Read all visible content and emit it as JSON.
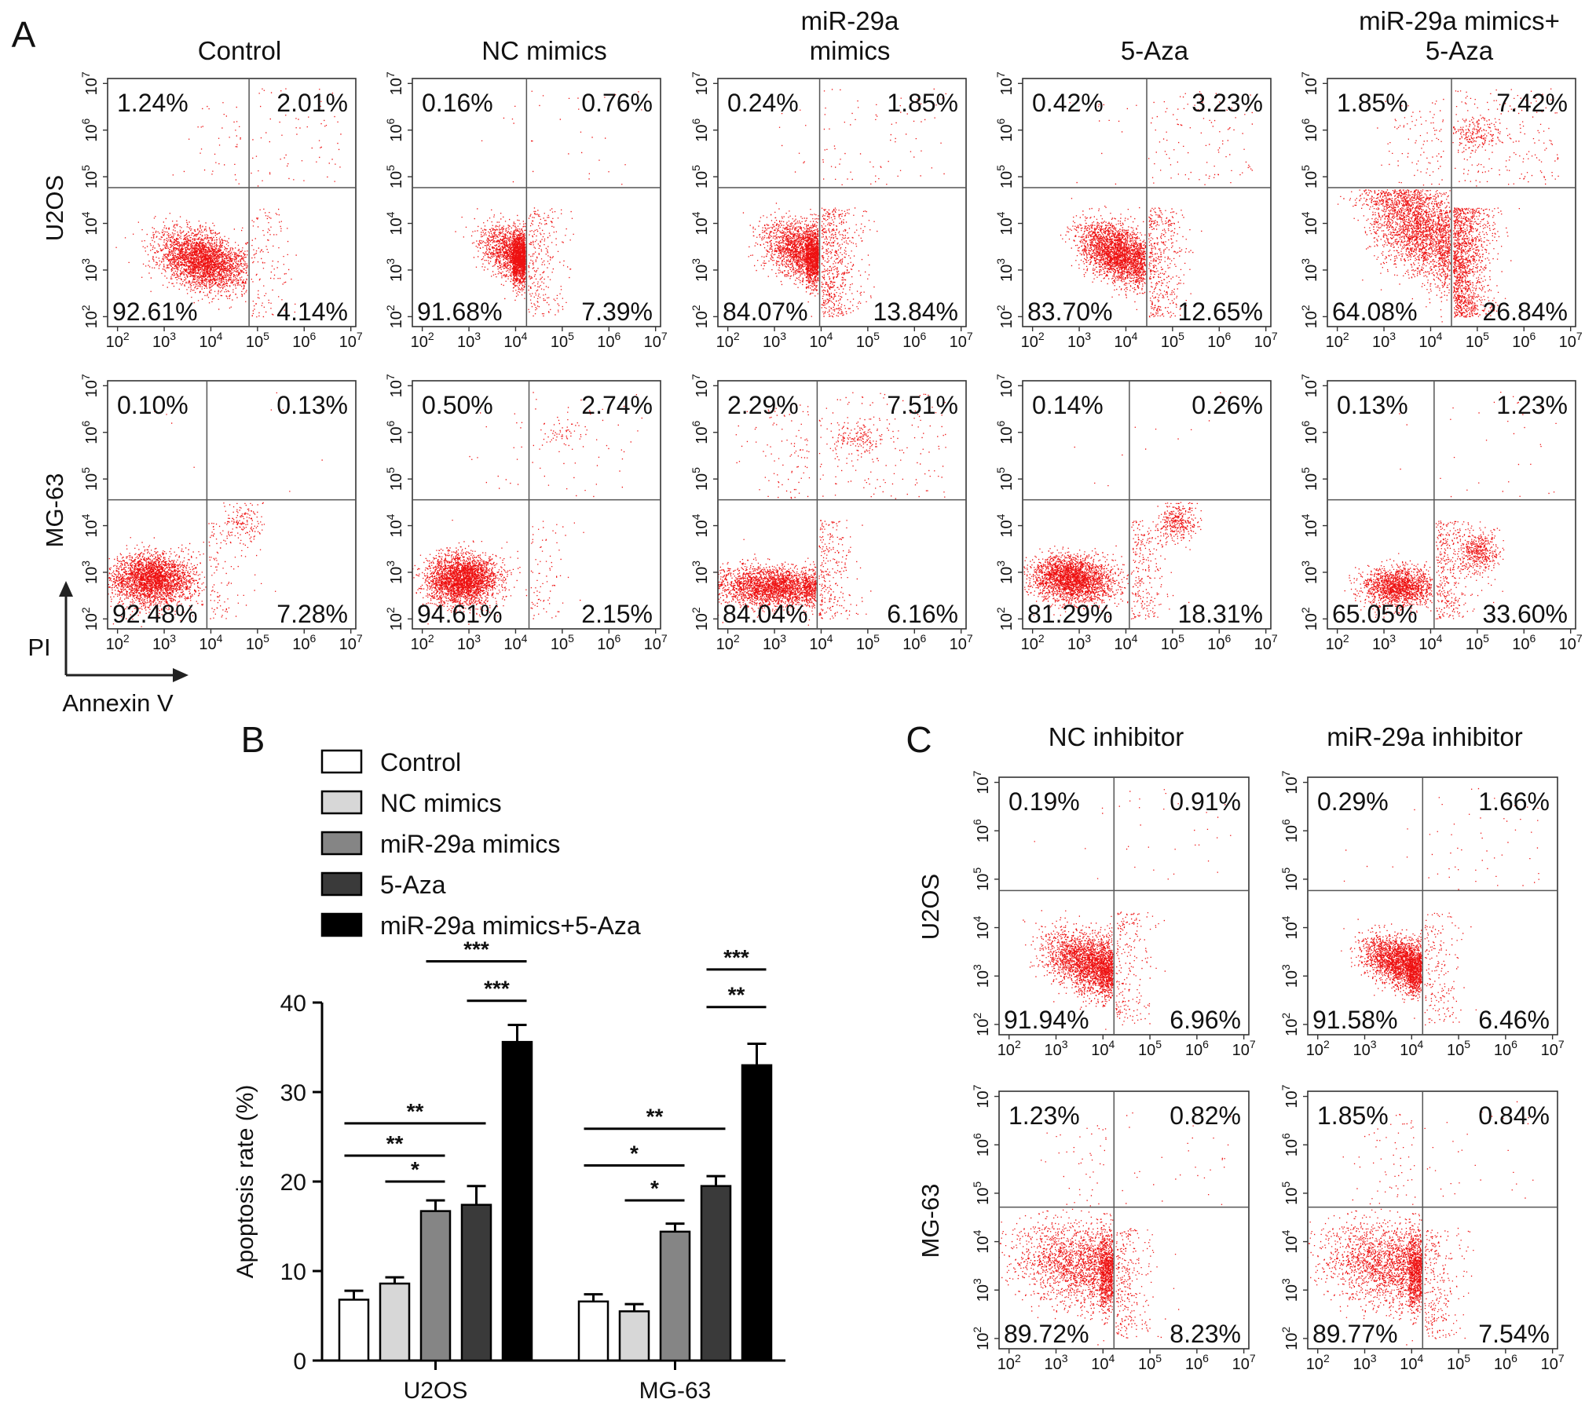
{
  "colors": {
    "dot": "#ee1111",
    "frame": "#333333",
    "bar_fills": [
      "#ffffff",
      "#d7d7d7",
      "#858585",
      "#3a3a3a",
      "#000000"
    ]
  },
  "panel_a": {
    "letter": "A",
    "columns": [
      "Control",
      "NC mimics",
      "miR-29a\nmimics",
      "5-Aza",
      "miR-29a mimics+\n5-Aza"
    ],
    "rows": [
      "U2OS",
      "MG-63"
    ],
    "y_axis_label": "PI",
    "x_axis_label": "Annexin V"
  },
  "panel_c": {
    "letter": "C",
    "columns": [
      "NC inhibitor",
      "miR-29a inhibitor"
    ],
    "rows": [
      "U2OS",
      "MG-63"
    ]
  },
  "flow_axis": {
    "tick_bases": [
      "10",
      "10",
      "10",
      "10",
      "10",
      "10"
    ],
    "tick_exponents": [
      "2",
      "3",
      "4",
      "5",
      "6",
      "7"
    ]
  },
  "chart_data": [
    {
      "type": "scatter",
      "panel": "A",
      "description_type": "flow cytometry quadrant plots (PI vs Annexin V)",
      "x_axis": {
        "label": "Annexin V",
        "scale": "log",
        "range": [
          100,
          10000000
        ]
      },
      "y_axis": {
        "label": "PI",
        "scale": "log",
        "range": [
          100,
          10000000
        ]
      },
      "quadrant_order": [
        "upper-left",
        "upper-right",
        "lower-left",
        "lower-right"
      ],
      "plots": [
        {
          "row": "U2OS",
          "column": "Control",
          "quadrants": [
            "1.24%",
            "2.01%",
            "92.61%",
            "4.14%"
          ]
        },
        {
          "row": "U2OS",
          "column": "NC mimics",
          "quadrants": [
            "0.16%",
            "0.76%",
            "91.68%",
            "7.39%"
          ]
        },
        {
          "row": "U2OS",
          "column": "miR-29a mimics",
          "quadrants": [
            "0.24%",
            "1.85%",
            "84.07%",
            "13.84%"
          ]
        },
        {
          "row": "U2OS",
          "column": "5-Aza",
          "quadrants": [
            "0.42%",
            "3.23%",
            "83.70%",
            "12.65%"
          ]
        },
        {
          "row": "U2OS",
          "column": "miR-29a mimics+5-Aza",
          "quadrants": [
            "1.85%",
            "7.42%",
            "64.08%",
            "26.84%"
          ]
        },
        {
          "row": "MG-63",
          "column": "Control",
          "quadrants": [
            "0.10%",
            "0.13%",
            "92.48%",
            "7.28%"
          ]
        },
        {
          "row": "MG-63",
          "column": "NC mimics",
          "quadrants": [
            "0.50%",
            "2.74%",
            "94.61%",
            "2.15%"
          ]
        },
        {
          "row": "MG-63",
          "column": "miR-29a mimics",
          "quadrants": [
            "2.29%",
            "7.51%",
            "84.04%",
            "6.16%"
          ]
        },
        {
          "row": "MG-63",
          "column": "5-Aza",
          "quadrants": [
            "0.14%",
            "0.26%",
            "81.29%",
            "18.31%"
          ]
        },
        {
          "row": "MG-63",
          "column": "miR-29a mimics+5-Aza",
          "quadrants": [
            "0.13%",
            "1.23%",
            "65.05%",
            "33.60%"
          ]
        }
      ]
    },
    {
      "type": "bar",
      "panel": "B",
      "letter": "B",
      "categories": [
        "U2OS",
        "MG-63"
      ],
      "series": [
        {
          "name": "Control",
          "values": [
            6.8,
            6.6
          ],
          "errors": [
            1.0,
            0.8
          ]
        },
        {
          "name": "NC mimics",
          "values": [
            8.6,
            5.5
          ],
          "errors": [
            0.7,
            0.8
          ]
        },
        {
          "name": "miR-29a mimics",
          "values": [
            16.7,
            14.4
          ],
          "errors": [
            1.2,
            0.9
          ]
        },
        {
          "name": "5-Aza",
          "values": [
            17.4,
            19.5
          ],
          "errors": [
            2.1,
            1.1
          ]
        },
        {
          "name": "miR-29a mimics+5-Aza",
          "values": [
            35.6,
            33.0
          ],
          "errors": [
            1.9,
            2.4
          ]
        }
      ],
      "ylabel": "Apoptosis rate (%)",
      "xlabel": "",
      "ylim": [
        0,
        40
      ],
      "yticks": [
        0,
        10,
        20,
        30,
        40
      ],
      "legend_position": "top",
      "significance": [
        {
          "category": 0,
          "from": 0,
          "to": 3,
          "label": "**",
          "level": 26.5
        },
        {
          "category": 0,
          "from": 0,
          "to": 2,
          "label": "**",
          "level": 22.9
        },
        {
          "category": 0,
          "from": 1,
          "to": 2,
          "label": "*",
          "level": 20.0
        },
        {
          "category": 0,
          "from": 2,
          "to": 4,
          "label": "***",
          "level": 44.6
        },
        {
          "category": 0,
          "from": 3,
          "to": 4,
          "label": "***",
          "level": 40.2
        },
        {
          "category": 1,
          "from": 0,
          "to": 3,
          "label": "**",
          "level": 25.9
        },
        {
          "category": 1,
          "from": 0,
          "to": 2,
          "label": "*",
          "level": 21.8
        },
        {
          "category": 1,
          "from": 1,
          "to": 2,
          "label": "*",
          "level": 17.9
        },
        {
          "category": 1,
          "from": 3,
          "to": 4,
          "label": "***",
          "level": 43.7
        },
        {
          "category": 1,
          "from": 3,
          "to": 4,
          "label": "**",
          "level": 39.5
        }
      ]
    },
    {
      "type": "scatter",
      "panel": "C",
      "description_type": "flow cytometry quadrant plots (PI vs Annexin V)",
      "x_axis": {
        "label": "Annexin V",
        "scale": "log",
        "range": [
          100,
          10000000
        ]
      },
      "y_axis": {
        "label": "PI",
        "scale": "log",
        "range": [
          100,
          10000000
        ]
      },
      "quadrant_order": [
        "upper-left",
        "upper-right",
        "lower-left",
        "lower-right"
      ],
      "plots": [
        {
          "row": "U2OS",
          "column": "NC inhibitor",
          "quadrants": [
            "0.19%",
            "0.91%",
            "91.94%",
            "6.96%"
          ]
        },
        {
          "row": "U2OS",
          "column": "miR-29a inhibitor",
          "quadrants": [
            "0.29%",
            "1.66%",
            "91.58%",
            "6.46%"
          ]
        },
        {
          "row": "MG-63",
          "column": "NC inhibitor",
          "quadrants": [
            "1.23%",
            "0.82%",
            "89.72%",
            "8.23%"
          ]
        },
        {
          "row": "MG-63",
          "column": "miR-29a inhibitor",
          "quadrants": [
            "1.85%",
            "0.84%",
            "89.77%",
            "7.54%"
          ]
        }
      ]
    }
  ]
}
